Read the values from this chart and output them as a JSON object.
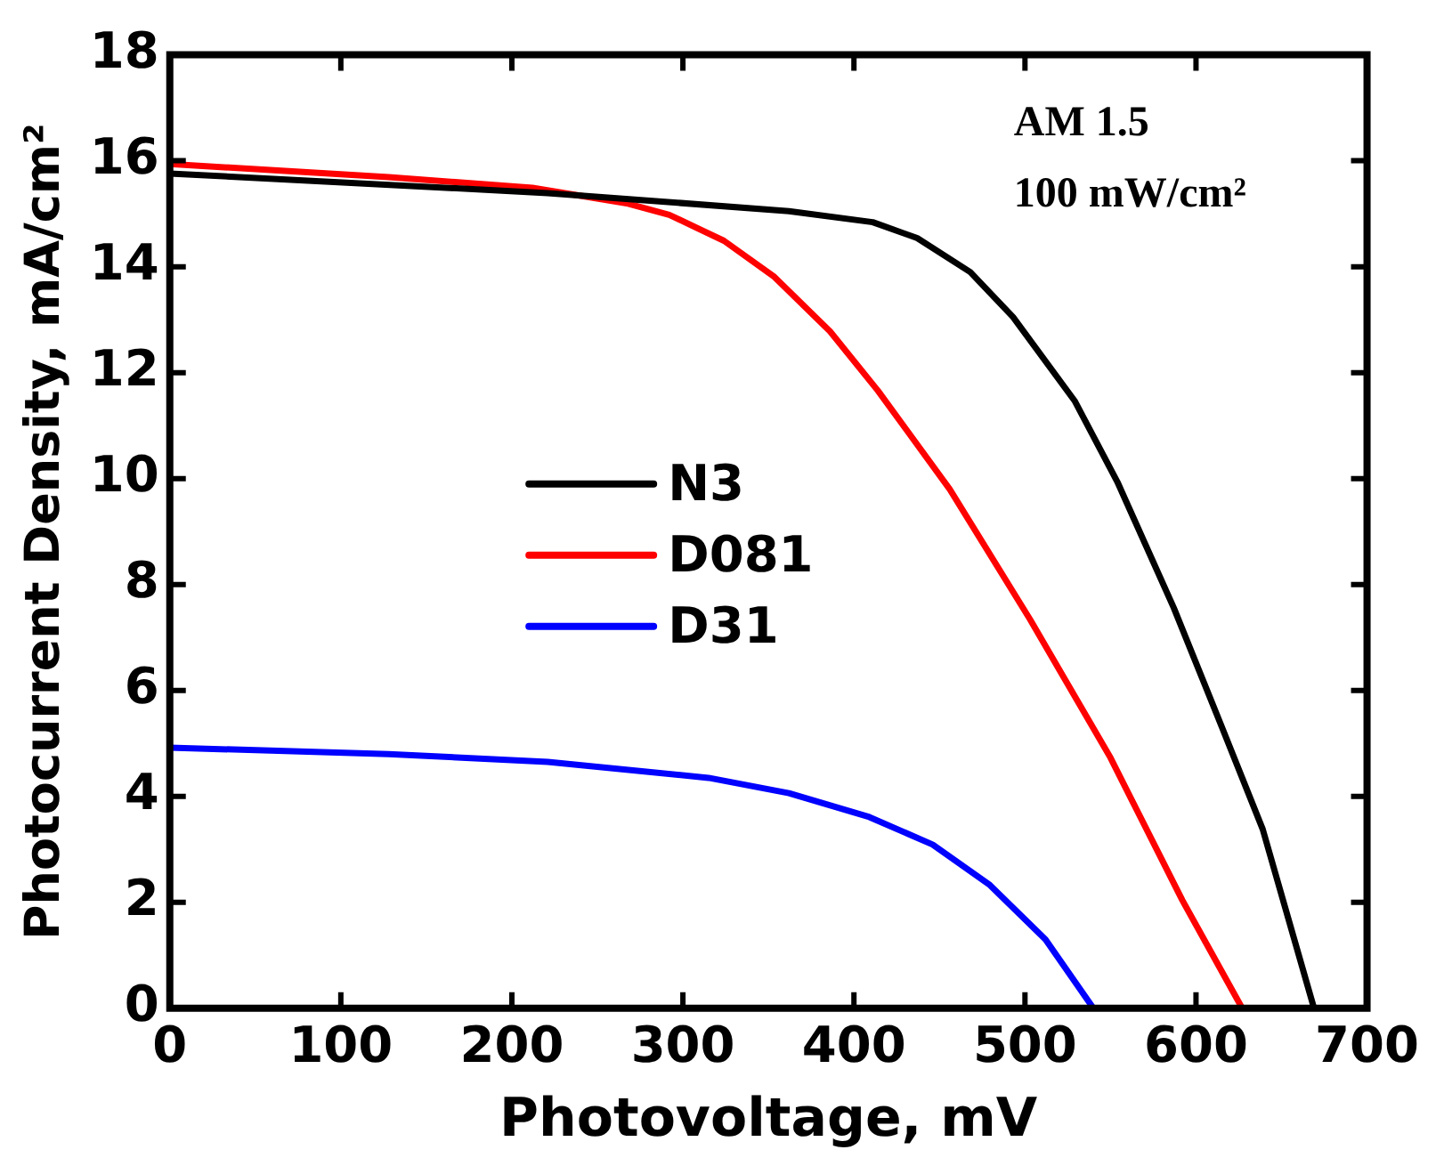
{
  "chart_data": {
    "type": "line",
    "xlabel": "Photovoltage, mV",
    "ylabel": "Photocurrent Density, mA/cm²",
    "annotations": [
      "AM 1.5",
      "100 mW/cm²"
    ],
    "series": [
      {
        "name": "N3",
        "color": "#000000",
        "x": [
          0,
          221,
          362,
          411,
          437,
          468,
          493,
          529,
          554,
          587,
          615,
          639,
          669
        ],
        "values": [
          15.76,
          15.39,
          15.05,
          14.84,
          14.54,
          13.9,
          13.05,
          11.47,
          9.94,
          7.56,
          5.32,
          3.38,
          0
        ]
      },
      {
        "name": "D081",
        "color": "#ff0000",
        "x": [
          0,
          128,
          212,
          268,
          292,
          324,
          353,
          386,
          414,
          456,
          503,
          550,
          592,
          627
        ],
        "values": [
          15.94,
          15.69,
          15.49,
          15.19,
          14.98,
          14.49,
          13.82,
          12.78,
          11.66,
          9.8,
          7.34,
          4.73,
          2.04,
          0
        ]
      },
      {
        "name": "D31",
        "color": "#0000ff",
        "x": [
          0,
          128,
          221,
          315,
          362,
          409,
          446,
          479,
          512,
          540
        ],
        "values": [
          4.92,
          4.8,
          4.65,
          4.35,
          4.06,
          3.61,
          3.09,
          2.34,
          1.3,
          0
        ]
      }
    ],
    "xlim": [
      0,
      700
    ],
    "xticks": [
      0,
      100,
      200,
      300,
      400,
      500,
      600,
      700
    ],
    "ylim": [
      0,
      18
    ],
    "yticks": [
      0,
      2,
      4,
      6,
      8,
      10,
      12,
      14,
      16,
      18
    ],
    "legend": "left",
    "marker": "none",
    "line_style": "solid"
  }
}
